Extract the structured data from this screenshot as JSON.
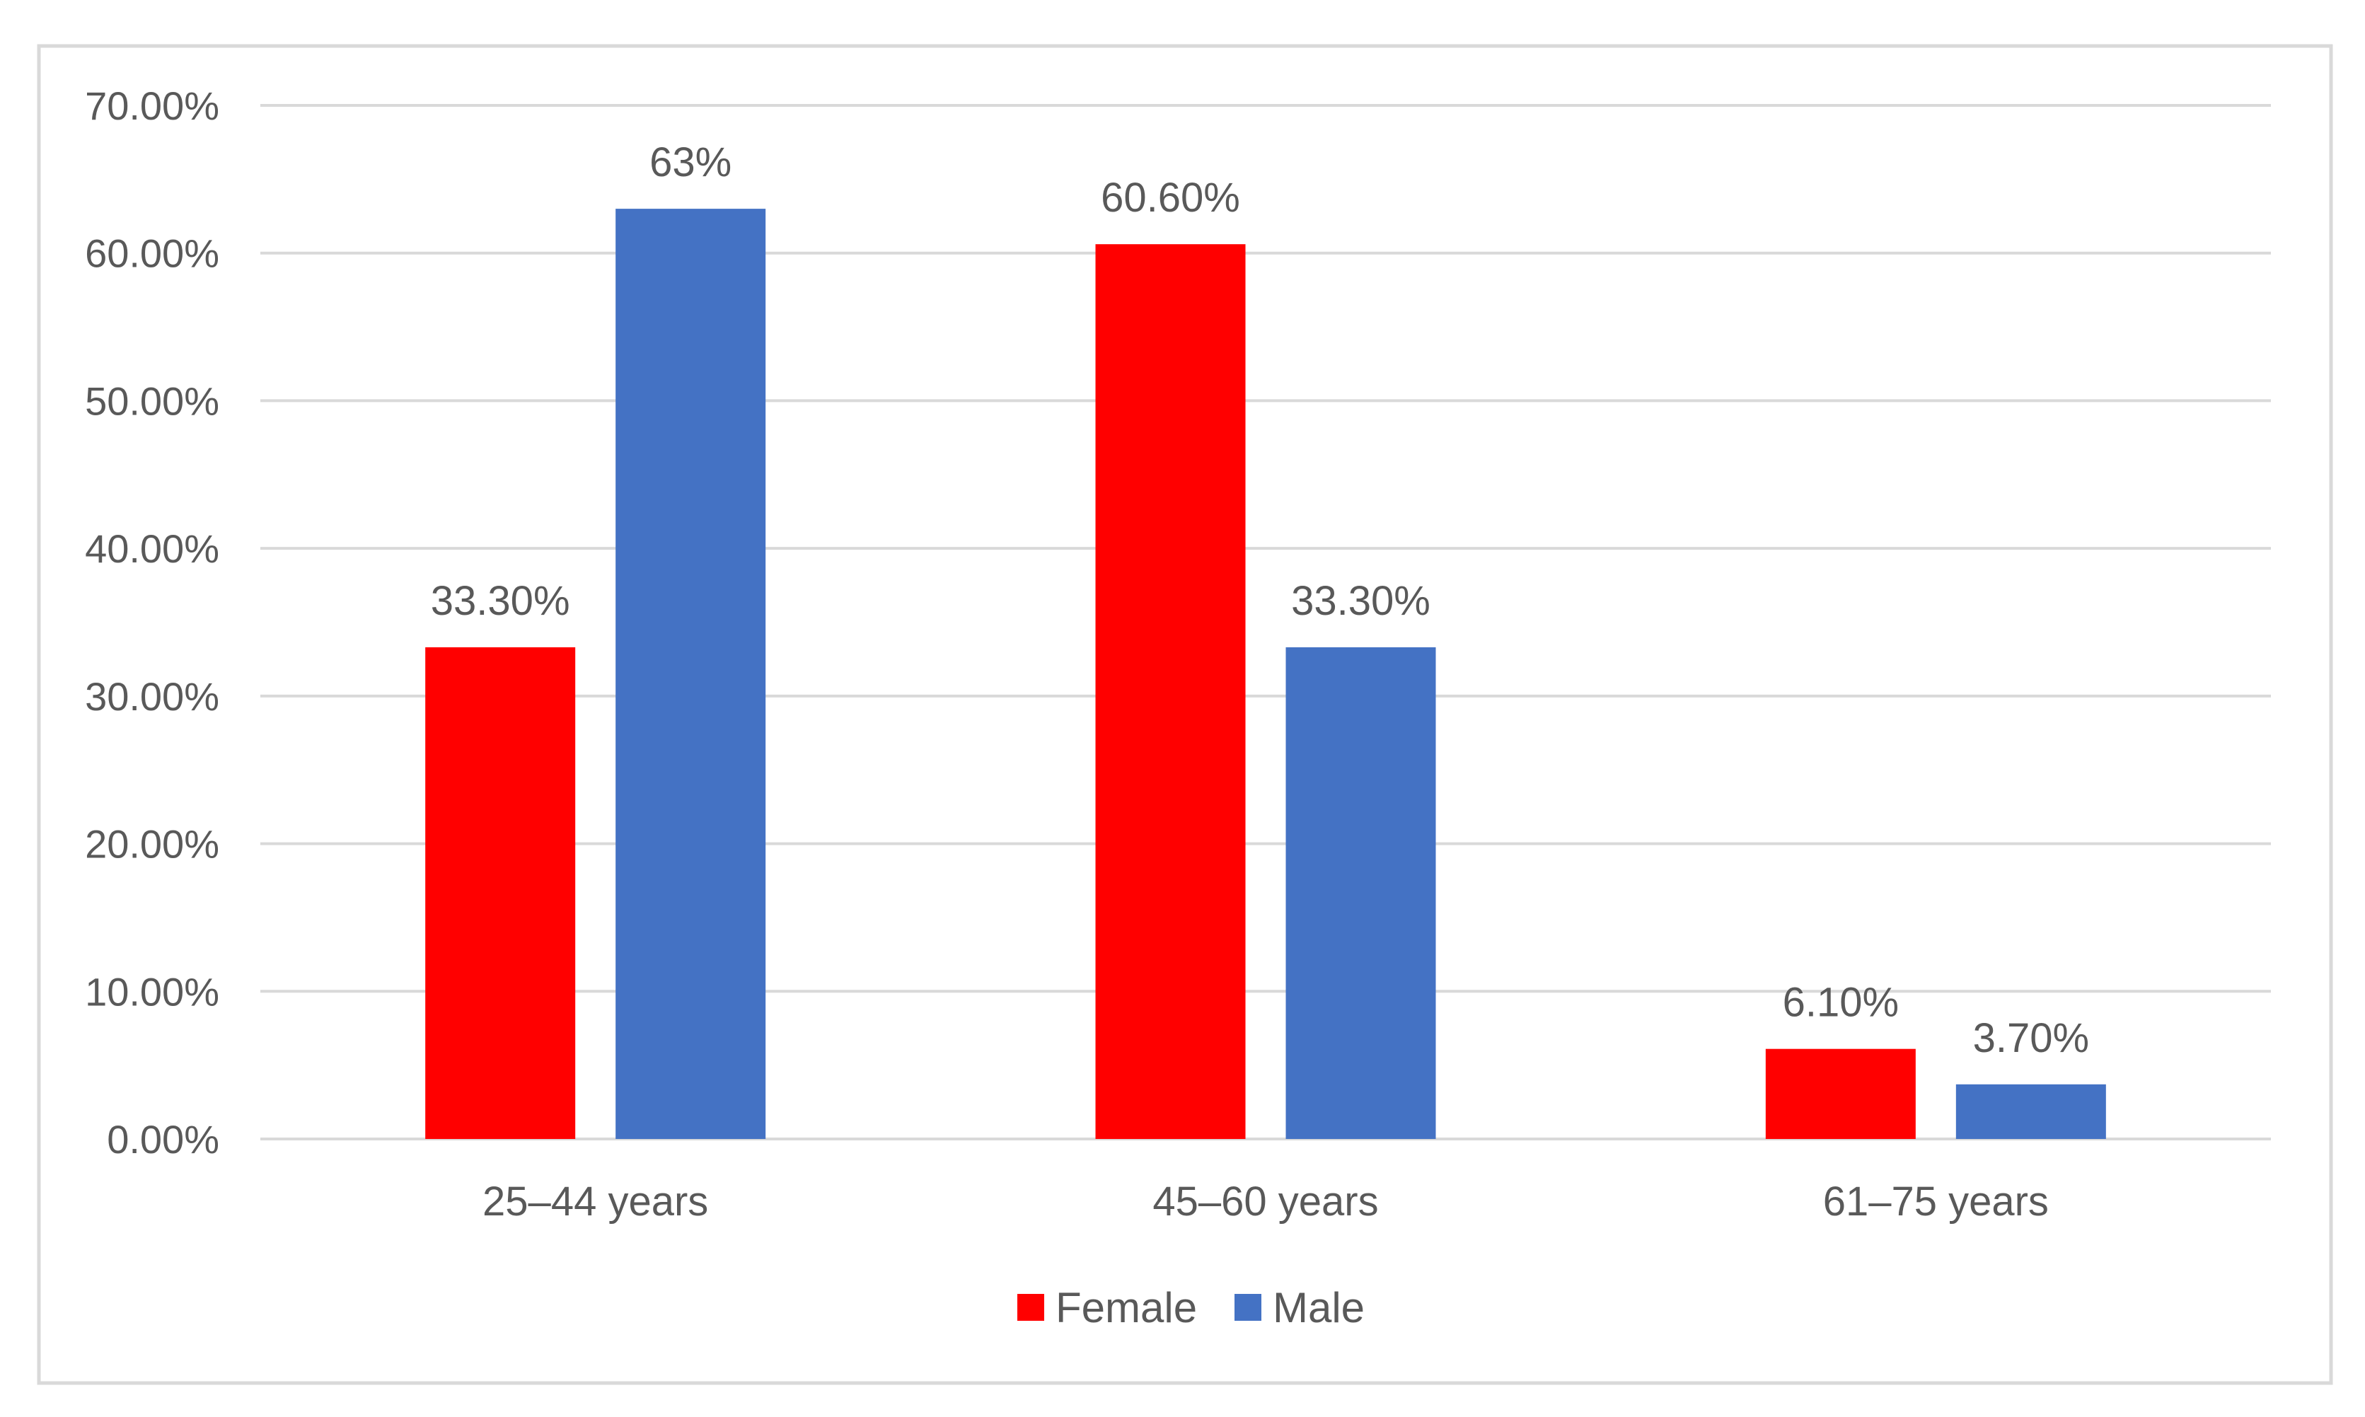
{
  "chart_data": {
    "type": "bar",
    "categories": [
      "25–44 years",
      "45–60 years",
      "61–75 years"
    ],
    "series": [
      {
        "name": "Female",
        "color": "#ff0000",
        "values": [
          33.3,
          60.6,
          6.1
        ],
        "labels": [
          "33.30%",
          "60.60%",
          "6.10%"
        ]
      },
      {
        "name": "Male",
        "color": "#4472c4",
        "values": [
          63,
          33.3,
          3.7
        ],
        "labels": [
          "63%",
          "33.30%",
          "3.70%"
        ]
      }
    ],
    "y_ticks": [
      "0.00%",
      "10.00%",
      "20.00%",
      "30.00%",
      "40.00%",
      "50.00%",
      "60.00%",
      "70.00%"
    ],
    "ylim": [
      0,
      70
    ],
    "title": "",
    "xlabel": "",
    "ylabel": "",
    "grid": true,
    "legend_position": "bottom",
    "colors": {
      "gridline": "#d9d9d9",
      "border": "#d9d9d9",
      "text": "#595959"
    }
  }
}
